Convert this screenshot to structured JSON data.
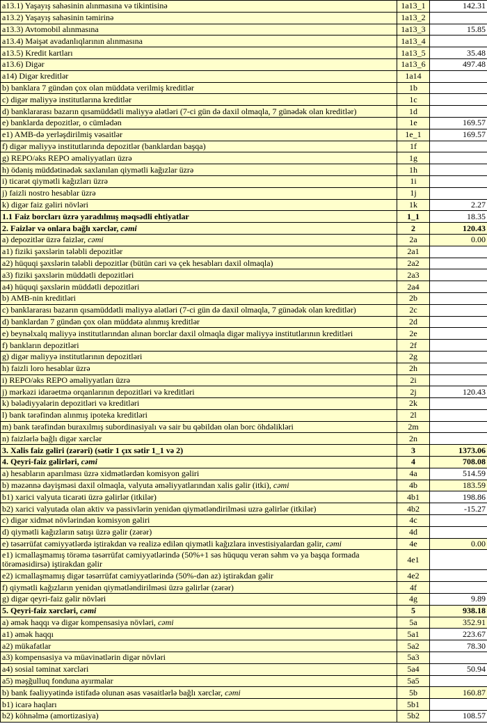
{
  "colors": {
    "cell_fill": "#FFFFCC",
    "input_fill": "#FFFFFF",
    "border": "#000000",
    "text": "#000000"
  },
  "table": {
    "rows": [
      {
        "label": "a13.1) Yaşayış sahəsinin alınmasına və tikintisinə",
        "label_italic": "",
        "code": "1a13_1",
        "value": "142.31",
        "level": 3,
        "bold": false,
        "value_highlight": false
      },
      {
        "label": "a13.2) Yaşayış sahəsinin təmirinə",
        "label_italic": "",
        "code": "1a13_2",
        "value": "",
        "level": 3,
        "bold": false,
        "value_highlight": false
      },
      {
        "label": "a13.3) Avtomobil alınmasına",
        "label_italic": "",
        "code": "1a13_3",
        "value": "15.85",
        "level": 3,
        "bold": false,
        "value_highlight": false
      },
      {
        "label": "a13.4) Məişət avadanlıqlarının alınmasına",
        "label_italic": "",
        "code": "1a13_4",
        "value": "",
        "level": 3,
        "bold": false,
        "value_highlight": false
      },
      {
        "label": "a13.5) Kredit kartları",
        "label_italic": "",
        "code": "1a13_5",
        "value": "35.48",
        "level": 3,
        "bold": false,
        "value_highlight": false
      },
      {
        "label": "a13.6) Digər",
        "label_italic": "",
        "code": "1a13_6",
        "value": "497.48",
        "level": 3,
        "bold": false,
        "value_highlight": false
      },
      {
        "label": "a14) Digər kreditlər",
        "label_italic": "",
        "code": "1a14",
        "value": "",
        "level": 2,
        "bold": false,
        "value_highlight": false
      },
      {
        "label": "b) banklara 7 gündən çox olan müddətə verilmiş kreditlər",
        "label_italic": "",
        "code": "1b",
        "value": "",
        "level": 1,
        "bold": false,
        "value_highlight": false
      },
      {
        "label": "c) digər maliyyə institutlarına kreditlər",
        "label_italic": "",
        "code": "1c",
        "value": "",
        "level": 1,
        "bold": false,
        "value_highlight": false
      },
      {
        "label": "d) banklararası bazarın qısamüddətli maliyyə alətləri (7-ci gün də daxil olmaqla, 7 günədək olan kreditlər)",
        "label_italic": "",
        "code": "1d",
        "value": "",
        "level": 1,
        "bold": false,
        "value_highlight": false
      },
      {
        "label": "e) banklarda depozitlər, o cümlədən",
        "label_italic": "",
        "code": "1e",
        "value": "169.57",
        "level": 1,
        "bold": false,
        "value_highlight": false
      },
      {
        "label": "e1) AMB-də yerləşdirilmiş vəsaitlər",
        "label_italic": "",
        "code": "1e_1",
        "value": "169.57",
        "level": 4,
        "bold": false,
        "value_highlight": false
      },
      {
        "label": "f) digər maliyyə institutlarında depozitlər (banklardan başqa)",
        "label_italic": "",
        "code": "1f",
        "value": "",
        "level": 1,
        "bold": false,
        "value_highlight": false
      },
      {
        "label": "g) REPO/əks REPO əməliyyatları üzrə",
        "label_italic": "",
        "code": "1g",
        "value": "",
        "level": 1,
        "bold": false,
        "value_highlight": false
      },
      {
        "label": "h) ödəniş müddətinədək saxlanılan qiymətli kağızlar üzrə",
        "label_italic": "",
        "code": "1h",
        "value": "",
        "level": 1,
        "bold": false,
        "value_highlight": false
      },
      {
        "label": "i) ticarət qiymətli kağızları üzrə",
        "label_italic": "",
        "code": "1i",
        "value": "",
        "level": 1,
        "bold": false,
        "value_highlight": false
      },
      {
        "label": "j) faizli nostro hesablar üzrə",
        "label_italic": "",
        "code": "1j",
        "value": "",
        "level": 1,
        "bold": false,
        "value_highlight": false
      },
      {
        "label": "k) digər faiz gəliri növləri",
        "label_italic": "",
        "code": "1k",
        "value": "2.27",
        "level": 1,
        "bold": false,
        "value_highlight": false
      },
      {
        "label": "1.1 Faiz borcları üzrə yaradılmış məqsədli ehtiyatlar",
        "label_italic": "",
        "code": "1_1",
        "value": "18.35",
        "level": 0,
        "bold": true,
        "value_highlight": false
      },
      {
        "label": "2. Faizlər və onlara bağlı xərclər, ",
        "label_italic": "cəmi",
        "code": "2",
        "value": "120.43",
        "level": 0,
        "bold": true,
        "value_highlight": true
      },
      {
        "label": "a) depozitlər üzrə faizlər, ",
        "label_italic": "cəmi",
        "code": "2a",
        "value": "0.00",
        "level": 1,
        "bold": false,
        "value_highlight": true
      },
      {
        "label": "a1) fiziki şəxslərin tələbli depozitlər",
        "label_italic": "",
        "code": "2a1",
        "value": "",
        "level": 4,
        "bold": false,
        "value_highlight": false
      },
      {
        "label": "a2) hüquqi şəxslərin tələbli depozitlər (bütün cari və çek hesabları daxil olmaqla)",
        "label_italic": "",
        "code": "2a2",
        "value": "",
        "level": 4,
        "bold": false,
        "value_highlight": false
      },
      {
        "label": "a3) fiziki şəxslərin müddətli depozitləri",
        "label_italic": "",
        "code": "2a3",
        "value": "",
        "level": 4,
        "bold": false,
        "value_highlight": false
      },
      {
        "label": "a4) hüquqi şəxslərin müddətli depozitləri",
        "label_italic": "",
        "code": "2a4",
        "value": "",
        "level": 4,
        "bold": false,
        "value_highlight": false
      },
      {
        "label": "b) AMB-nin kreditləri",
        "label_italic": "",
        "code": "2b",
        "value": "",
        "level": 1,
        "bold": false,
        "value_highlight": false
      },
      {
        "label": "c) banklararası bazarın qısamüddətli maliyyə alətləri (7-ci gün də daxil olmaqla, 7 günədək olan kreditlər)",
        "label_italic": "",
        "code": "2c",
        "value": "",
        "level": 1,
        "bold": false,
        "value_highlight": false
      },
      {
        "label": "d) banklardan 7 gündən çox olan müddətə alınmış kreditlər",
        "label_italic": "",
        "code": "2d",
        "value": "",
        "level": 1,
        "bold": false,
        "value_highlight": false
      },
      {
        "label": "e) beynəlxalq maliyyə institutlarından alınan borclar daxil olmaqla digər maliyyə institutlarının kreditləri",
        "label_italic": "",
        "code": "2e",
        "value": "",
        "level": 1,
        "bold": false,
        "value_highlight": false
      },
      {
        "label": "f) bankların depozitləri",
        "label_italic": "",
        "code": "2f",
        "value": "",
        "level": 1,
        "bold": false,
        "value_highlight": false
      },
      {
        "label": "g) digər maliyyə institutlarının depozitləri",
        "label_italic": "",
        "code": "2g",
        "value": "",
        "level": 1,
        "bold": false,
        "value_highlight": false
      },
      {
        "label": "h) faizli loro hesablar üzrə",
        "label_italic": "",
        "code": "2h",
        "value": "",
        "level": 1,
        "bold": false,
        "value_highlight": false
      },
      {
        "label": "i) REPO/əks REPO əməliyyatları üzrə",
        "label_italic": "",
        "code": "2i",
        "value": "",
        "level": 1,
        "bold": false,
        "value_highlight": false
      },
      {
        "label": "j) mərkəzi idarəetmə orqanlarının depozitləri və kreditləri",
        "label_italic": "",
        "code": "2j",
        "value": "120.43",
        "level": 1,
        "bold": false,
        "value_highlight": false
      },
      {
        "label": "k) bələdiyyələrin depozitləri və kreditləri",
        "label_italic": "",
        "code": "2k",
        "value": "",
        "level": 1,
        "bold": false,
        "value_highlight": false
      },
      {
        "label": "l) bank tərəfindən alınmış ipoteka kreditləri",
        "label_italic": "",
        "code": "2l",
        "value": "",
        "level": 1,
        "bold": false,
        "value_highlight": false
      },
      {
        "label": "m) bank tərəfindən buraxılmış subordinasiyalı və sair bu qəbildən olan borc öhdəlikləri",
        "label_italic": "",
        "code": "2m",
        "value": "",
        "level": 1,
        "bold": false,
        "value_highlight": false
      },
      {
        "label": "n) faizlərlə bağlı digər xərclər",
        "label_italic": "",
        "code": "2n",
        "value": "",
        "level": 1,
        "bold": false,
        "value_highlight": false
      },
      {
        "label": "3. Xalis faiz gəliri (zərəri) (sətir 1 çıx sətir 1_1 və 2)",
        "label_italic": "",
        "code": "3",
        "value": "1373.06",
        "level": 0,
        "bold": true,
        "value_highlight": true
      },
      {
        "label": "4. Qeyri-faiz gəlirləri, ",
        "label_italic": "cəmi",
        "code": "4",
        "value": "708.08",
        "level": 0,
        "bold": true,
        "value_highlight": true
      },
      {
        "label": "a) hesabların aparılması üzrə xidmətlərdən komisyon gəliri",
        "label_italic": "",
        "code": "4a",
        "value": "514.59",
        "level": 1,
        "bold": false,
        "value_highlight": false
      },
      {
        "label": "b) məzənnə dəyişməsi daxil olmaqla, valyuta əməliyyatlarından xalis gəlir (itki), ",
        "label_italic": "cəmi",
        "code": "4b",
        "value": "183.59",
        "level": 1,
        "bold": false,
        "value_highlight": true
      },
      {
        "label": "b1) xarici valyuta ticarəti üzrə gəlirlər (itkilər)",
        "label_italic": "",
        "code": "4b1",
        "value": "198.86",
        "level": 4,
        "bold": false,
        "value_highlight": false
      },
      {
        "label": "b2) xarici valyutada olan aktiv və passivlərin yenidən qiymətləndirilməsi uzrə gəlirlər (itkilər)",
        "label_italic": "",
        "code": "4b2",
        "value": "-15.27",
        "level": 4,
        "bold": false,
        "value_highlight": false
      },
      {
        "label": "c) digər xidmət növlərindən komisyon gəliri",
        "label_italic": "",
        "code": "4c",
        "value": "",
        "level": 1,
        "bold": false,
        "value_highlight": false
      },
      {
        "label": "d) qiymətli kağızların satışı üzrə gəlir (zərər)",
        "label_italic": "",
        "code": "4d",
        "value": "",
        "level": 1,
        "bold": false,
        "value_highlight": false
      },
      {
        "label": "e) təsərrüfat cəmiyyətlərdə iştirakdan və realizə edilən qiymətli kağızlara investisiyalardan gəlir, ",
        "label_italic": "cəmi",
        "code": "4e",
        "value": "0.00",
        "level": 1,
        "bold": false,
        "value_highlight": true
      },
      {
        "label": "e1) icmallaşmamış törəmə təsərrüfat cəmiyyətlərində  (50%+1 səs hüququ verən səhm və ya başqa formada törəməsidirsə) iştirakdan gəlir",
        "label_italic": "",
        "code": "4e1",
        "value": "",
        "level": 4,
        "bold": false,
        "value_highlight": false
      },
      {
        "label": "e2) icmallaşmamış digər təsərrüfat cəmiyyətlərində (50%-dən az) iştirakdan gəlir",
        "label_italic": "",
        "code": "4e2",
        "value": "",
        "level": 4,
        "bold": false,
        "value_highlight": false
      },
      {
        "label": "f) qiymətli kağızların yenidən qiymətləndirilməsi üzrə gəlirlər (zərər)",
        "label_italic": "",
        "code": "4f",
        "value": "",
        "level": 1,
        "bold": false,
        "value_highlight": false
      },
      {
        "label": "g) digər qeyri-faiz gəlir növləri",
        "label_italic": "",
        "code": "4g",
        "value": "9.89",
        "level": 1,
        "bold": false,
        "value_highlight": false
      },
      {
        "label": "5. Qeyri-faiz xərcləri, ",
        "label_italic": "cəmi",
        "code": "5",
        "value": "938.18",
        "level": 0,
        "bold": true,
        "value_highlight": true
      },
      {
        "label": "a) əmək haqqı və digər kompensasiya növləri, ",
        "label_italic": "cəmi",
        "code": "5a",
        "value": "352.91",
        "level": 1,
        "bold": false,
        "value_highlight": true
      },
      {
        "label": "a1) əmək haqqı",
        "label_italic": "",
        "code": "5a1",
        "value": "223.67",
        "level": 4,
        "bold": false,
        "value_highlight": false
      },
      {
        "label": "a2) mükafatlar",
        "label_italic": "",
        "code": "5a2",
        "value": "78.30",
        "level": 4,
        "bold": false,
        "value_highlight": false
      },
      {
        "label": "a3) kompensasiya və müavinətlərin digər növləri",
        "label_italic": "",
        "code": "5a3",
        "value": "",
        "level": 4,
        "bold": false,
        "value_highlight": false
      },
      {
        "label": "a4) sosial təminat xərcləri",
        "label_italic": "",
        "code": "5a4",
        "value": "50.94",
        "level": 4,
        "bold": false,
        "value_highlight": false
      },
      {
        "label": "a5) məşğulluq fonduna ayırmalar",
        "label_italic": "",
        "code": "5a5",
        "value": "",
        "level": 4,
        "bold": false,
        "value_highlight": false
      },
      {
        "label": "b) bank fəaliyyətində istifadə olunan əsas vəsaitlərlə bağlı xərclər, ",
        "label_italic": "cəmi",
        "code": "5b",
        "value": "160.87",
        "level": 1,
        "bold": false,
        "value_highlight": true
      },
      {
        "label": "b1) icarə haqları",
        "label_italic": "",
        "code": "5b1",
        "value": "",
        "level": 4,
        "bold": false,
        "value_highlight": false
      },
      {
        "label": "b2) köhnəlmə (amortizasiya)",
        "label_italic": "",
        "code": "5b2",
        "value": "108.57",
        "level": 4,
        "bold": false,
        "value_highlight": false
      }
    ]
  }
}
